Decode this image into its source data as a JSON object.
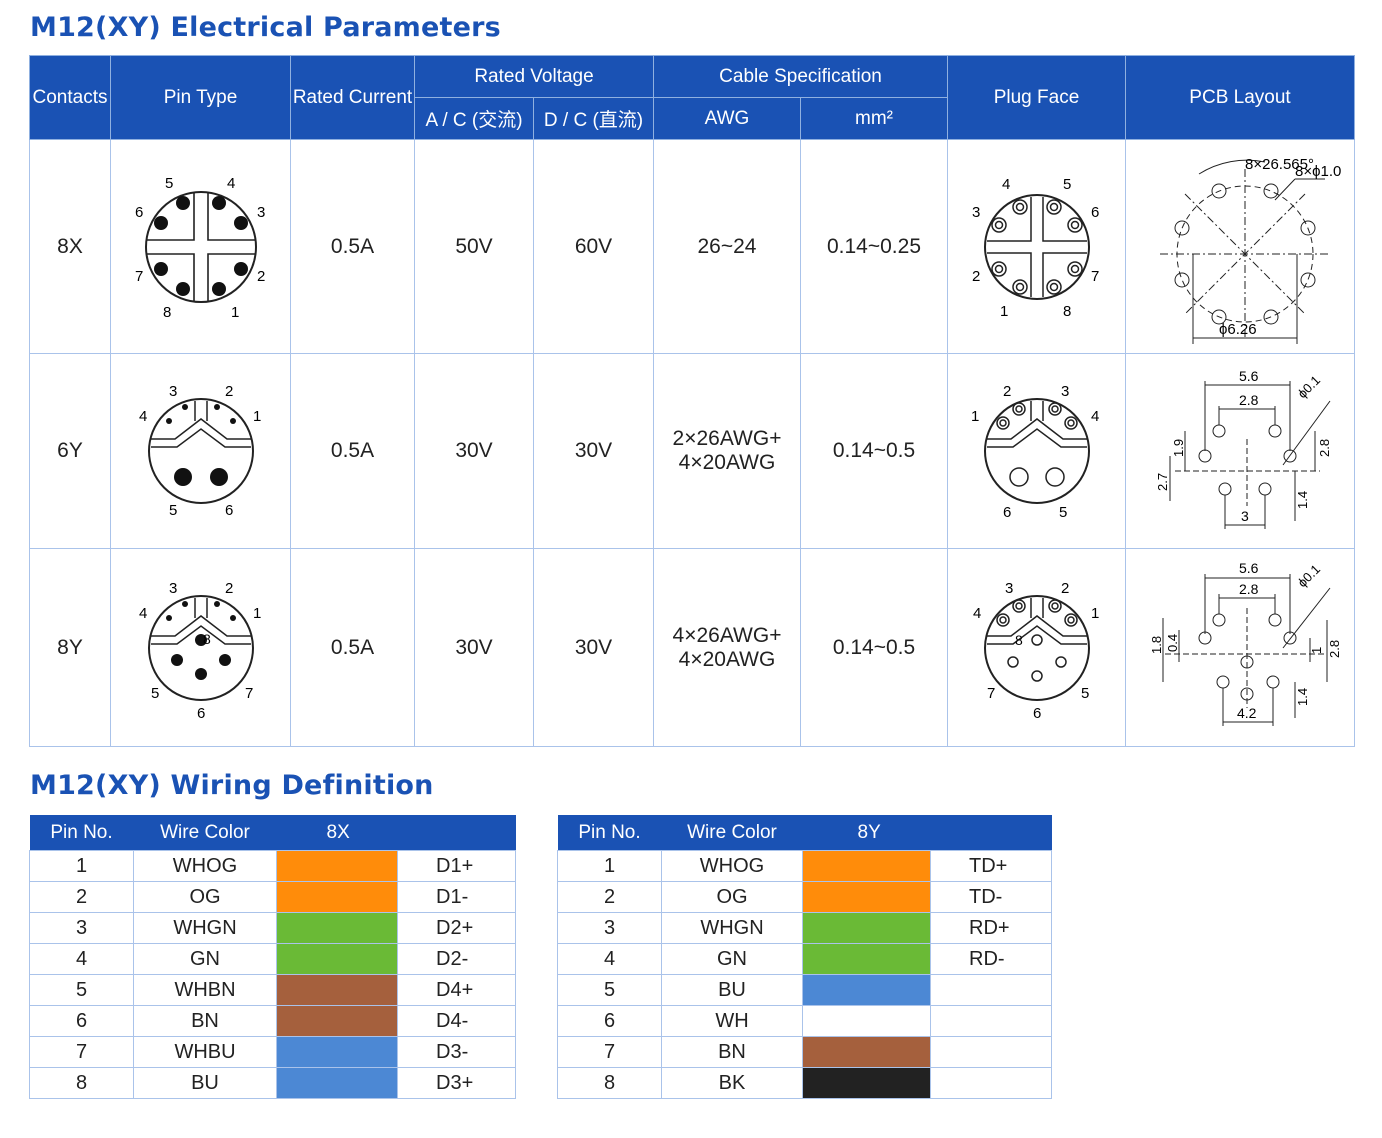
{
  "elec_title": "M12(XY) Electrical Parameters",
  "wiring_title": "M12(XY) Wiring Definition",
  "headers": {
    "contacts": "Contacts",
    "pin_type": "Pin Type",
    "rated_current": "Rated Current",
    "rated_voltage": "Rated Voltage",
    "ac": "A / C (交流)",
    "dc": "D / C (直流)",
    "cable_spec": "Cable Specification",
    "awg": "AWG",
    "mm2": "mm²",
    "plug_face": "Plug Face",
    "pcb_layout": "PCB Layout"
  },
  "rows": [
    {
      "contacts": "8X",
      "current": "0.5A",
      "ac": "50V",
      "dc": "60V",
      "awg_1": "26~24",
      "awg_2": "",
      "mm2": "0.14~0.25",
      "pin_labels": [
        "1",
        "2",
        "3",
        "4",
        "5",
        "6",
        "7",
        "8"
      ],
      "pcb_labels": {
        "angle": "8×26.565°",
        "hole": "8×ϕ1.0",
        "dia": "ϕ6.26"
      }
    },
    {
      "contacts": "6Y",
      "current": "0.5A",
      "ac": "30V",
      "dc": "30V",
      "awg_1": "2×26AWG+",
      "awg_2": "4×20AWG",
      "mm2": "0.14~0.5",
      "pin_labels": [
        "1",
        "2",
        "3",
        "4",
        "5",
        "6"
      ],
      "pcb_labels": {
        "d1": "5.6",
        "d2": "2.8",
        "hole": "ϕ0.1",
        "v1": "1.9",
        "v2": "2.8",
        "v3": "2.7",
        "v4": "1.4",
        "d3": "3"
      }
    },
    {
      "contacts": "8Y",
      "current": "0.5A",
      "ac": "30V",
      "dc": "30V",
      "awg_1": "4×26AWG+",
      "awg_2": "4×20AWG",
      "mm2": "0.14~0.5",
      "pin_labels": [
        "1",
        "2",
        "3",
        "4",
        "5",
        "6",
        "7",
        "8"
      ],
      "pcb_labels": {
        "d1": "5.6",
        "d2": "2.8",
        "hole": "ϕ0.1",
        "v1": "1.8",
        "v2": "0.4",
        "v3": "1",
        "v4": "2.8",
        "v5": "1.4",
        "d3": "4.2"
      }
    }
  ],
  "wiring_headers": {
    "pin": "Pin No.",
    "color": "Wire Color",
    "t1": "8X",
    "t2": "8Y"
  },
  "wiring_8x": [
    {
      "pin": "1",
      "color": "WHOG",
      "hex": "#ff8c0a",
      "signal": "D1+"
    },
    {
      "pin": "2",
      "color": "OG",
      "hex": "#ff8c0a",
      "signal": "D1-"
    },
    {
      "pin": "3",
      "color": "WHGN",
      "hex": "#6aba36",
      "signal": "D2+"
    },
    {
      "pin": "4",
      "color": "GN",
      "hex": "#6aba36",
      "signal": "D2-"
    },
    {
      "pin": "5",
      "color": "WHBN",
      "hex": "#a5603d",
      "signal": "D4+"
    },
    {
      "pin": "6",
      "color": "BN",
      "hex": "#a5603d",
      "signal": "D4-"
    },
    {
      "pin": "7",
      "color": "WHBU",
      "hex": "#4c88d4",
      "signal": "D3-"
    },
    {
      "pin": "8",
      "color": "BU",
      "hex": "#4c88d4",
      "signal": "D3+"
    }
  ],
  "wiring_8y": [
    {
      "pin": "1",
      "color": "WHOG",
      "hex": "#ff8c0a",
      "signal": "TD+"
    },
    {
      "pin": "2",
      "color": "OG",
      "hex": "#ff8c0a",
      "signal": "TD-"
    },
    {
      "pin": "3",
      "color": "WHGN",
      "hex": "#6aba36",
      "signal": "RD+"
    },
    {
      "pin": "4",
      "color": "GN",
      "hex": "#6aba36",
      "signal": "RD-"
    },
    {
      "pin": "5",
      "color": "BU",
      "hex": "#4c88d4",
      "signal": ""
    },
    {
      "pin": "6",
      "color": "WH",
      "hex": "#ffffff",
      "signal": ""
    },
    {
      "pin": "7",
      "color": "BN",
      "hex": "#a5603d",
      "signal": ""
    },
    {
      "pin": "8",
      "color": "BK",
      "hex": "#222222",
      "signal": ""
    }
  ]
}
